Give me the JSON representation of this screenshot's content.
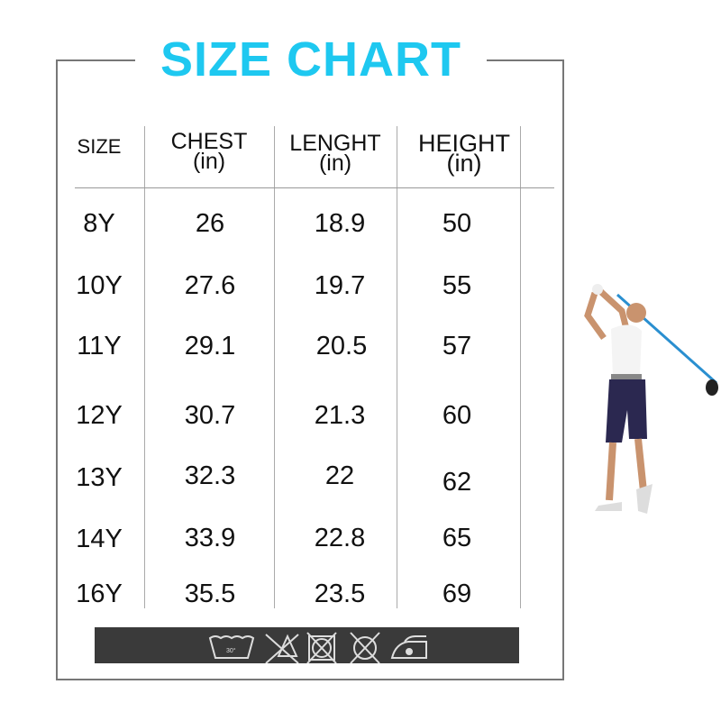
{
  "title": "SIZE CHART",
  "headers": [
    {
      "label": "SIZE",
      "unit": ""
    },
    {
      "label": "CHEST",
      "unit": "(in)"
    },
    {
      "label": "LENGHT",
      "unit": "(in)"
    },
    {
      "label": "HEIGHT",
      "unit": "(in)"
    }
  ],
  "rows": [
    [
      "8Y",
      "26",
      "18.9",
      "50"
    ],
    [
      "10Y",
      "27.6",
      "19.7",
      "55"
    ],
    [
      "11Y",
      "29.1",
      "20.5",
      "57"
    ],
    [
      "12Y",
      "30.7",
      "21.3",
      "60"
    ],
    [
      "13Y",
      "32.3",
      "22",
      "62"
    ],
    [
      "14Y",
      "33.9",
      "22.8",
      "65"
    ],
    [
      "16Y",
      "35.5",
      "23.5",
      "69"
    ]
  ],
  "care_icons": [
    "wash-30-icon",
    "no-bleach-icon",
    "no-tumble-dry-icon",
    "no-dry-clean-icon",
    "iron-low-icon"
  ],
  "colors": {
    "title": "#1ec8f0",
    "care_bar": "#3a3a3a"
  }
}
